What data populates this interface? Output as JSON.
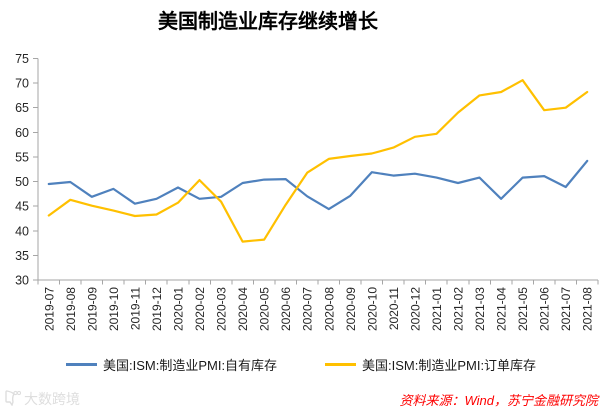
{
  "chart_data": {
    "type": "line",
    "title": "美国制造业库存继续增长",
    "categories": [
      "2019-07",
      "2019-08",
      "2019-09",
      "2019-10",
      "2019-11",
      "2019-12",
      "2020-01",
      "2020-02",
      "2020-03",
      "2020-04",
      "2020-05",
      "2020-06",
      "2020-07",
      "2020-08",
      "2020-09",
      "2020-10",
      "2020-11",
      "2020-12",
      "2021-01",
      "2021-02",
      "2021-03",
      "2021-04",
      "2021-05",
      "2021-06",
      "2021-07",
      "2021-08"
    ],
    "series": [
      {
        "name": "美国:ISM:制造业PMI:自有库存",
        "color": "#4F81BD",
        "values": [
          49.5,
          49.9,
          46.9,
          48.5,
          45.5,
          46.5,
          48.8,
          46.5,
          46.9,
          49.7,
          50.4,
          50.5,
          47.0,
          44.4,
          47.1,
          51.9,
          51.2,
          51.6,
          50.8,
          49.7,
          50.8,
          46.5,
          50.8,
          51.1,
          48.9,
          54.2
        ]
      },
      {
        "name": "美国:ISM:制造业PMI:订单库存",
        "color": "#FFC000",
        "values": [
          43.1,
          46.3,
          45.1,
          44.1,
          43.0,
          43.3,
          45.7,
          50.3,
          45.9,
          37.8,
          38.2,
          45.3,
          51.8,
          54.6,
          55.2,
          55.7,
          56.9,
          59.1,
          59.7,
          64.0,
          67.5,
          68.2,
          70.6,
          64.5,
          65.0,
          68.2
        ]
      }
    ],
    "xlabel": "",
    "ylabel": "",
    "ylim": [
      30,
      75
    ],
    "y_tick_step": 5,
    "y_tick_labels": [
      "30",
      "35",
      "40",
      "45",
      "50",
      "55",
      "60",
      "65",
      "70",
      "75"
    ],
    "grid": false,
    "legend_position": "bottom",
    "axis_color": "#A6A6A6",
    "tick_label_color": "#262626"
  },
  "footer": {
    "source": "资料来源：Wind，苏宁金融研究院",
    "source_color": "#FE0000",
    "watermark": "大数跨境",
    "watermark_color": "#DEDEDE"
  }
}
